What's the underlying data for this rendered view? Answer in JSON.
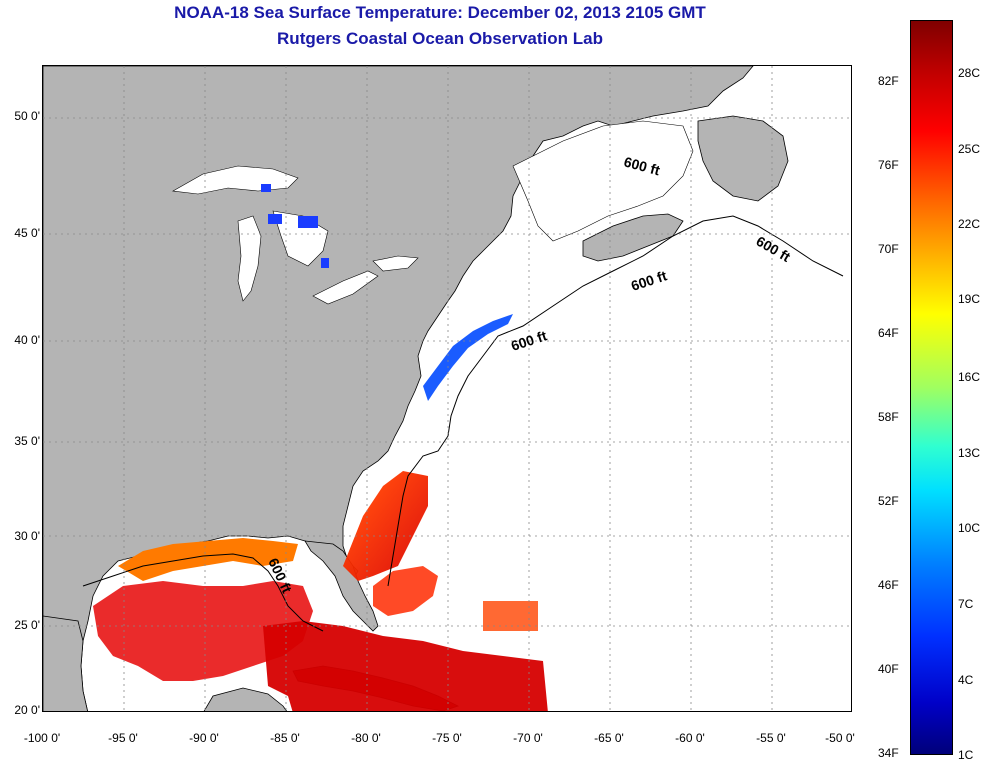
{
  "header": {
    "title": "NOAA-18 Sea Surface Temperature:  December 02, 2013 2105 GMT",
    "subtitle": "Rutgers Coastal Ocean Observation Lab"
  },
  "map": {
    "lon_range": [
      -100,
      -50
    ],
    "lat_range": [
      20,
      52.5
    ],
    "lat_ticks": [
      "20 0'",
      "25 0'",
      "30 0'",
      "35 0'",
      "40 0'",
      "45 0'",
      "50 0'"
    ],
    "lon_ticks": [
      "-100 0'",
      "-95 0'",
      "-90 0'",
      "-85 0'",
      "-80 0'",
      "-75 0'",
      "-70 0'",
      "-65 0'",
      "-60 0'",
      "-55 0'",
      "-50 0'"
    ],
    "contour_labels": [
      "600 ft",
      "600 ft",
      "600 ft",
      "600 ft",
      "600 ft"
    ],
    "colors": {
      "land": "#b4b4b4",
      "no_data": "#ffffff",
      "grid": "#888888"
    }
  },
  "colorbar": {
    "fahrenheit_labels": [
      "82F",
      "76F",
      "70F",
      "64F",
      "58F",
      "52F",
      "46F",
      "40F",
      "34F"
    ],
    "celsius_labels": [
      "28C",
      "25C",
      "22C",
      "19C",
      "16C",
      "13C",
      "10C",
      "7C",
      "4C",
      "1C"
    ],
    "colors": [
      "#7f0000",
      "#ff0000",
      "#ff8000",
      "#ffff00",
      "#80ff80",
      "#00ffff",
      "#0080ff",
      "#0000ff",
      "#00008f"
    ]
  }
}
